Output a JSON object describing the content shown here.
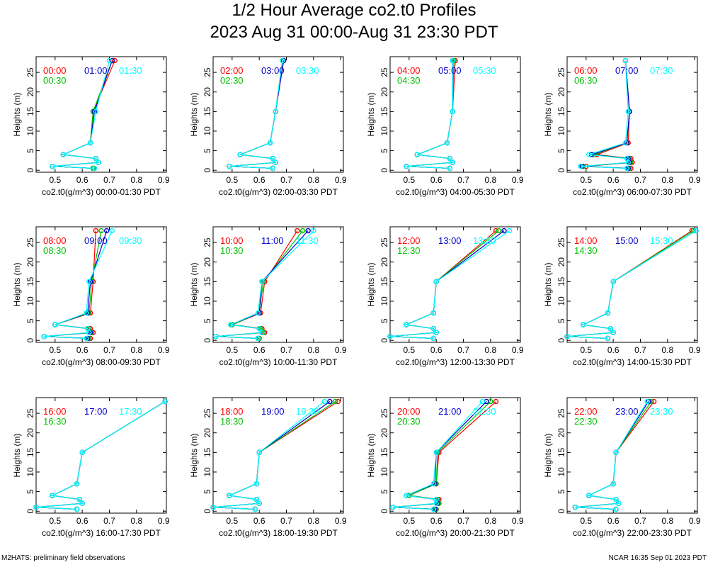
{
  "title": "1/2 Hour Average co2.t0 Profiles",
  "subtitle": "2023 Aug 31 00:00-Aug 31 23:30 PDT",
  "footer_left": "M2HATS: preliminary field observations",
  "footer_right": "NCAR 16:35 Sep 01 2023 PDT",
  "colors": {
    "first": "#ff0000",
    "second": "#00c000",
    "third": "#0000cd",
    "fourth": "#00ffff"
  },
  "chart_data": [
    {
      "type": "line",
      "ylabel": "Heights (m)",
      "xlabel": "co2.t0(g/m^3) 00:00-01:30 PDT",
      "xlim": [
        0.43,
        0.91
      ],
      "ylim": [
        -0.5,
        29
      ],
      "xticks": [
        0.5,
        0.6,
        0.7,
        0.8,
        0.9
      ],
      "yticks": [
        0,
        5,
        10,
        15,
        20,
        25
      ],
      "heights": [
        28,
        15,
        7,
        4,
        3,
        2,
        1,
        0.5
      ],
      "series": [
        {
          "name": "00:00",
          "values": [
            0.72,
            0.64,
            0.63,
            0.53,
            0.65,
            0.66,
            0.49,
            0.64
          ]
        },
        {
          "name": "00:30",
          "values": [
            0.71,
            0.64,
            0.63,
            0.53,
            0.65,
            0.66,
            0.49,
            0.64
          ]
        },
        {
          "name": "01:00",
          "values": [
            0.71,
            0.645,
            0.63,
            0.53,
            0.65,
            0.66,
            0.49,
            0.645
          ]
        },
        {
          "name": "01:30",
          "values": [
            0.7,
            0.65,
            0.63,
            0.53,
            0.65,
            0.66,
            0.49,
            0.645
          ]
        }
      ]
    },
    {
      "type": "line",
      "ylabel": "Heights (m)",
      "xlabel": "co2.t0(g/m^3) 02:00-03:30 PDT",
      "xlim": [
        0.43,
        0.91
      ],
      "ylim": [
        -0.5,
        29
      ],
      "xticks": [
        0.5,
        0.6,
        0.7,
        0.8,
        0.9
      ],
      "yticks": [
        0,
        5,
        10,
        15,
        20,
        25
      ],
      "heights": [
        28,
        15,
        7,
        4,
        3,
        2,
        1,
        0.5
      ],
      "series": [
        {
          "name": "02:00",
          "values": [
            0.69,
            0.66,
            0.64,
            0.53,
            0.65,
            0.66,
            0.49,
            0.65
          ]
        },
        {
          "name": "02:30",
          "values": [
            0.685,
            0.66,
            0.64,
            0.53,
            0.65,
            0.66,
            0.49,
            0.65
          ]
        },
        {
          "name": "03:00",
          "values": [
            0.69,
            0.66,
            0.64,
            0.53,
            0.65,
            0.66,
            0.49,
            0.65
          ]
        },
        {
          "name": "03:30",
          "values": [
            0.685,
            0.66,
            0.64,
            0.53,
            0.65,
            0.66,
            0.49,
            0.65
          ]
        }
      ]
    },
    {
      "type": "line",
      "ylabel": "Heights (m)",
      "xlabel": "co2.t0(g/m^3) 04:00-05:30 PDT",
      "xlim": [
        0.43,
        0.91
      ],
      "ylim": [
        -0.5,
        29
      ],
      "xticks": [
        0.5,
        0.6,
        0.7,
        0.8,
        0.9
      ],
      "yticks": [
        0,
        5,
        10,
        15,
        20,
        25
      ],
      "heights": [
        28,
        15,
        7,
        4,
        3,
        2,
        1,
        0.5
      ],
      "series": [
        {
          "name": "04:00",
          "values": [
            0.67,
            0.66,
            0.64,
            0.53,
            0.65,
            0.66,
            0.49,
            0.65
          ]
        },
        {
          "name": "04:30",
          "values": [
            0.665,
            0.66,
            0.64,
            0.53,
            0.65,
            0.66,
            0.49,
            0.65
          ]
        },
        {
          "name": "05:00",
          "values": [
            0.66,
            0.66,
            0.64,
            0.53,
            0.65,
            0.66,
            0.49,
            0.65
          ]
        },
        {
          "name": "05:30",
          "values": [
            0.66,
            0.66,
            0.64,
            0.53,
            0.65,
            0.66,
            0.49,
            0.65
          ]
        }
      ]
    },
    {
      "type": "line",
      "ylabel": "Heights (m)",
      "xlabel": "co2.t0(g/m^3) 06:00-07:30 PDT",
      "xlim": [
        0.43,
        0.91
      ],
      "ylim": [
        -0.5,
        29
      ],
      "xticks": [
        0.5,
        0.6,
        0.7,
        0.8,
        0.9
      ],
      "yticks": [
        0,
        5,
        10,
        15,
        20,
        25
      ],
      "heights": [
        28,
        15,
        7,
        4,
        3,
        2,
        1,
        0.5
      ],
      "series": [
        {
          "name": "06:00",
          "values": [
            0.645,
            0.66,
            0.655,
            0.54,
            0.665,
            0.67,
            0.5,
            0.665
          ]
        },
        {
          "name": "06:30",
          "values": [
            0.645,
            0.66,
            0.65,
            0.53,
            0.66,
            0.665,
            0.49,
            0.66
          ]
        },
        {
          "name": "07:00",
          "values": [
            0.645,
            0.66,
            0.65,
            0.52,
            0.655,
            0.66,
            0.485,
            0.655
          ]
        },
        {
          "name": "07:30",
          "values": [
            0.645,
            0.655,
            0.645,
            0.51,
            0.65,
            0.655,
            0.48,
            0.65
          ]
        }
      ]
    },
    {
      "type": "line",
      "ylabel": "Heights (m)",
      "xlabel": "co2.t0(g/m^3) 08:00-09:30 PDT",
      "xlim": [
        0.43,
        0.91
      ],
      "ylim": [
        -0.5,
        29
      ],
      "xticks": [
        0.5,
        0.6,
        0.7,
        0.8,
        0.9
      ],
      "yticks": [
        0,
        5,
        10,
        15,
        20,
        25
      ],
      "heights": [
        28,
        15,
        7,
        4,
        3,
        2,
        1,
        0.5
      ],
      "series": [
        {
          "name": "08:00",
          "values": [
            0.65,
            0.64,
            0.63,
            0.5,
            0.63,
            0.64,
            0.46,
            0.63
          ]
        },
        {
          "name": "08:30",
          "values": [
            0.67,
            0.635,
            0.625,
            0.5,
            0.625,
            0.635,
            0.46,
            0.625
          ]
        },
        {
          "name": "09:00",
          "values": [
            0.69,
            0.63,
            0.62,
            0.5,
            0.62,
            0.63,
            0.46,
            0.62
          ]
        },
        {
          "name": "09:30",
          "values": [
            0.71,
            0.625,
            0.615,
            0.5,
            0.62,
            0.625,
            0.46,
            0.615
          ]
        }
      ]
    },
    {
      "type": "line",
      "ylabel": "Heights (m)",
      "xlabel": "co2.t0(g/m^3) 10:00-11:30 PDT",
      "xlim": [
        0.43,
        0.91
      ],
      "ylim": [
        -0.5,
        29
      ],
      "xticks": [
        0.5,
        0.6,
        0.7,
        0.8,
        0.9
      ],
      "yticks": [
        0,
        5,
        10,
        15,
        20,
        25
      ],
      "heights": [
        28,
        15,
        7,
        4,
        3,
        2,
        1,
        0.5
      ],
      "series": [
        {
          "name": "10:00",
          "values": [
            0.74,
            0.62,
            0.605,
            0.5,
            0.61,
            0.62,
            0.44,
            0.6
          ]
        },
        {
          "name": "10:30",
          "values": [
            0.76,
            0.615,
            0.6,
            0.5,
            0.605,
            0.615,
            0.44,
            0.6
          ]
        },
        {
          "name": "11:00",
          "values": [
            0.78,
            0.61,
            0.6,
            0.495,
            0.6,
            0.61,
            0.44,
            0.595
          ]
        },
        {
          "name": "11:30",
          "values": [
            0.8,
            0.61,
            0.595,
            0.495,
            0.6,
            0.61,
            0.44,
            0.595
          ]
        }
      ]
    },
    {
      "type": "line",
      "ylabel": "Heights (m)",
      "xlabel": "co2.t0(g/m^3) 12:00-13:30 PDT",
      "xlim": [
        0.43,
        0.91
      ],
      "ylim": [
        -0.5,
        29
      ],
      "xticks": [
        0.5,
        0.6,
        0.7,
        0.8,
        0.9
      ],
      "yticks": [
        0,
        5,
        10,
        15,
        20,
        25
      ],
      "heights": [
        28,
        15,
        7,
        4,
        3,
        2,
        1,
        0.5
      ],
      "series": [
        {
          "name": "12:00",
          "values": [
            0.82,
            0.6,
            0.59,
            0.49,
            0.59,
            0.6,
            0.43,
            0.59
          ]
        },
        {
          "name": "12:30",
          "values": [
            0.83,
            0.6,
            0.59,
            0.49,
            0.59,
            0.6,
            0.43,
            0.59
          ]
        },
        {
          "name": "13:00",
          "values": [
            0.85,
            0.6,
            0.59,
            0.49,
            0.59,
            0.6,
            0.43,
            0.59
          ]
        },
        {
          "name": "13:30",
          "values": [
            0.87,
            0.6,
            0.59,
            0.49,
            0.59,
            0.6,
            0.43,
            0.59
          ]
        }
      ]
    },
    {
      "type": "line",
      "ylabel": "Heights (m)",
      "xlabel": "co2.t0(g/m^3) 14:00-15:30 PDT",
      "xlim": [
        0.43,
        0.91
      ],
      "ylim": [
        -0.5,
        29
      ],
      "xticks": [
        0.5,
        0.6,
        0.7,
        0.8,
        0.9
      ],
      "yticks": [
        0,
        5,
        10,
        15,
        20,
        25
      ],
      "heights": [
        28,
        15,
        7,
        4,
        3,
        2,
        1,
        0.5
      ],
      "series": [
        {
          "name": "14:00",
          "values": [
            0.89,
            0.6,
            0.58,
            0.49,
            0.59,
            0.6,
            0.43,
            0.58
          ]
        },
        {
          "name": "14:30",
          "values": [
            0.895,
            0.6,
            0.58,
            0.49,
            0.59,
            0.6,
            0.43,
            0.58
          ]
        },
        {
          "name": "15:00",
          "values": [
            0.905,
            0.6,
            0.58,
            0.49,
            0.59,
            0.6,
            0.43,
            0.58
          ]
        },
        {
          "name": "15:30",
          "values": [
            0.905,
            0.6,
            0.58,
            0.49,
            0.59,
            0.6,
            0.43,
            0.58
          ]
        }
      ]
    },
    {
      "type": "line",
      "ylabel": "Heights (m)",
      "xlabel": "co2.t0(g/m^3) 16:00-17:30 PDT",
      "xlim": [
        0.43,
        0.91
      ],
      "ylim": [
        -0.5,
        29
      ],
      "xticks": [
        0.5,
        0.6,
        0.7,
        0.8,
        0.9
      ],
      "yticks": [
        0,
        5,
        10,
        15,
        20,
        25
      ],
      "heights": [
        28,
        15,
        7,
        4,
        3,
        2,
        1,
        0.5
      ],
      "series": [
        {
          "name": "16:00",
          "values": [
            0.905,
            0.6,
            0.58,
            0.49,
            0.59,
            0.6,
            0.43,
            0.58
          ]
        },
        {
          "name": "16:30",
          "values": [
            0.905,
            0.6,
            0.58,
            0.49,
            0.59,
            0.6,
            0.43,
            0.58
          ]
        },
        {
          "name": "17:00",
          "values": [
            0.905,
            0.6,
            0.58,
            0.49,
            0.59,
            0.6,
            0.43,
            0.58
          ]
        },
        {
          "name": "17:30",
          "values": [
            0.905,
            0.6,
            0.58,
            0.49,
            0.59,
            0.6,
            0.43,
            0.58
          ]
        }
      ]
    },
    {
      "type": "line",
      "ylabel": "Heights (m)",
      "xlabel": "co2.t0(g/m^3) 18:00-19:30 PDT",
      "xlim": [
        0.43,
        0.91
      ],
      "ylim": [
        -0.5,
        29
      ],
      "xticks": [
        0.5,
        0.6,
        0.7,
        0.8,
        0.9
      ],
      "yticks": [
        0,
        5,
        10,
        15,
        20,
        25
      ],
      "heights": [
        28,
        15,
        7,
        4,
        3,
        2,
        1,
        0.5
      ],
      "series": [
        {
          "name": "18:00",
          "values": [
            0.89,
            0.6,
            0.59,
            0.49,
            0.59,
            0.6,
            0.43,
            0.585
          ]
        },
        {
          "name": "18:30",
          "values": [
            0.88,
            0.6,
            0.59,
            0.49,
            0.59,
            0.6,
            0.43,
            0.585
          ]
        },
        {
          "name": "19:00",
          "values": [
            0.86,
            0.6,
            0.59,
            0.49,
            0.59,
            0.6,
            0.43,
            0.585
          ]
        },
        {
          "name": "19:30",
          "values": [
            0.84,
            0.6,
            0.59,
            0.49,
            0.59,
            0.6,
            0.43,
            0.585
          ]
        }
      ]
    },
    {
      "type": "line",
      "ylabel": "Heights (m)",
      "xlabel": "co2.t0(g/m^3) 20:00-21:30 PDT",
      "xlim": [
        0.43,
        0.91
      ],
      "ylim": [
        -0.5,
        29
      ],
      "xticks": [
        0.5,
        0.6,
        0.7,
        0.8,
        0.9
      ],
      "yticks": [
        0,
        5,
        10,
        15,
        20,
        25
      ],
      "heights": [
        28,
        15,
        7,
        4,
        3,
        2,
        1,
        0.5
      ],
      "series": [
        {
          "name": "20:00",
          "values": [
            0.82,
            0.61,
            0.6,
            0.5,
            0.61,
            0.61,
            0.44,
            0.6
          ]
        },
        {
          "name": "20:30",
          "values": [
            0.8,
            0.605,
            0.6,
            0.5,
            0.605,
            0.61,
            0.44,
            0.6
          ]
        },
        {
          "name": "21:00",
          "values": [
            0.785,
            0.6,
            0.595,
            0.49,
            0.6,
            0.605,
            0.44,
            0.595
          ]
        },
        {
          "name": "21:30",
          "values": [
            0.77,
            0.6,
            0.59,
            0.49,
            0.6,
            0.6,
            0.44,
            0.59
          ]
        }
      ]
    },
    {
      "type": "line",
      "ylabel": "Heights (m)",
      "xlabel": "co2.t0(g/m^3) 22:00-23:30 PDT",
      "xlim": [
        0.43,
        0.91
      ],
      "ylim": [
        -0.5,
        29
      ],
      "xticks": [
        0.5,
        0.6,
        0.7,
        0.8,
        0.9
      ],
      "yticks": [
        0,
        5,
        10,
        15,
        20,
        25
      ],
      "heights": [
        28,
        15,
        7,
        4,
        3,
        2,
        1,
        0.5
      ],
      "series": [
        {
          "name": "22:00",
          "values": [
            0.75,
            0.61,
            0.6,
            0.51,
            0.61,
            0.62,
            0.46,
            0.61
          ]
        },
        {
          "name": "22:30",
          "values": [
            0.74,
            0.61,
            0.6,
            0.51,
            0.61,
            0.62,
            0.46,
            0.61
          ]
        },
        {
          "name": "23:00",
          "values": [
            0.73,
            0.61,
            0.6,
            0.51,
            0.61,
            0.62,
            0.46,
            0.61
          ]
        },
        {
          "name": "23:30",
          "values": [
            0.725,
            0.61,
            0.6,
            0.51,
            0.61,
            0.62,
            0.46,
            0.61
          ]
        }
      ]
    }
  ]
}
